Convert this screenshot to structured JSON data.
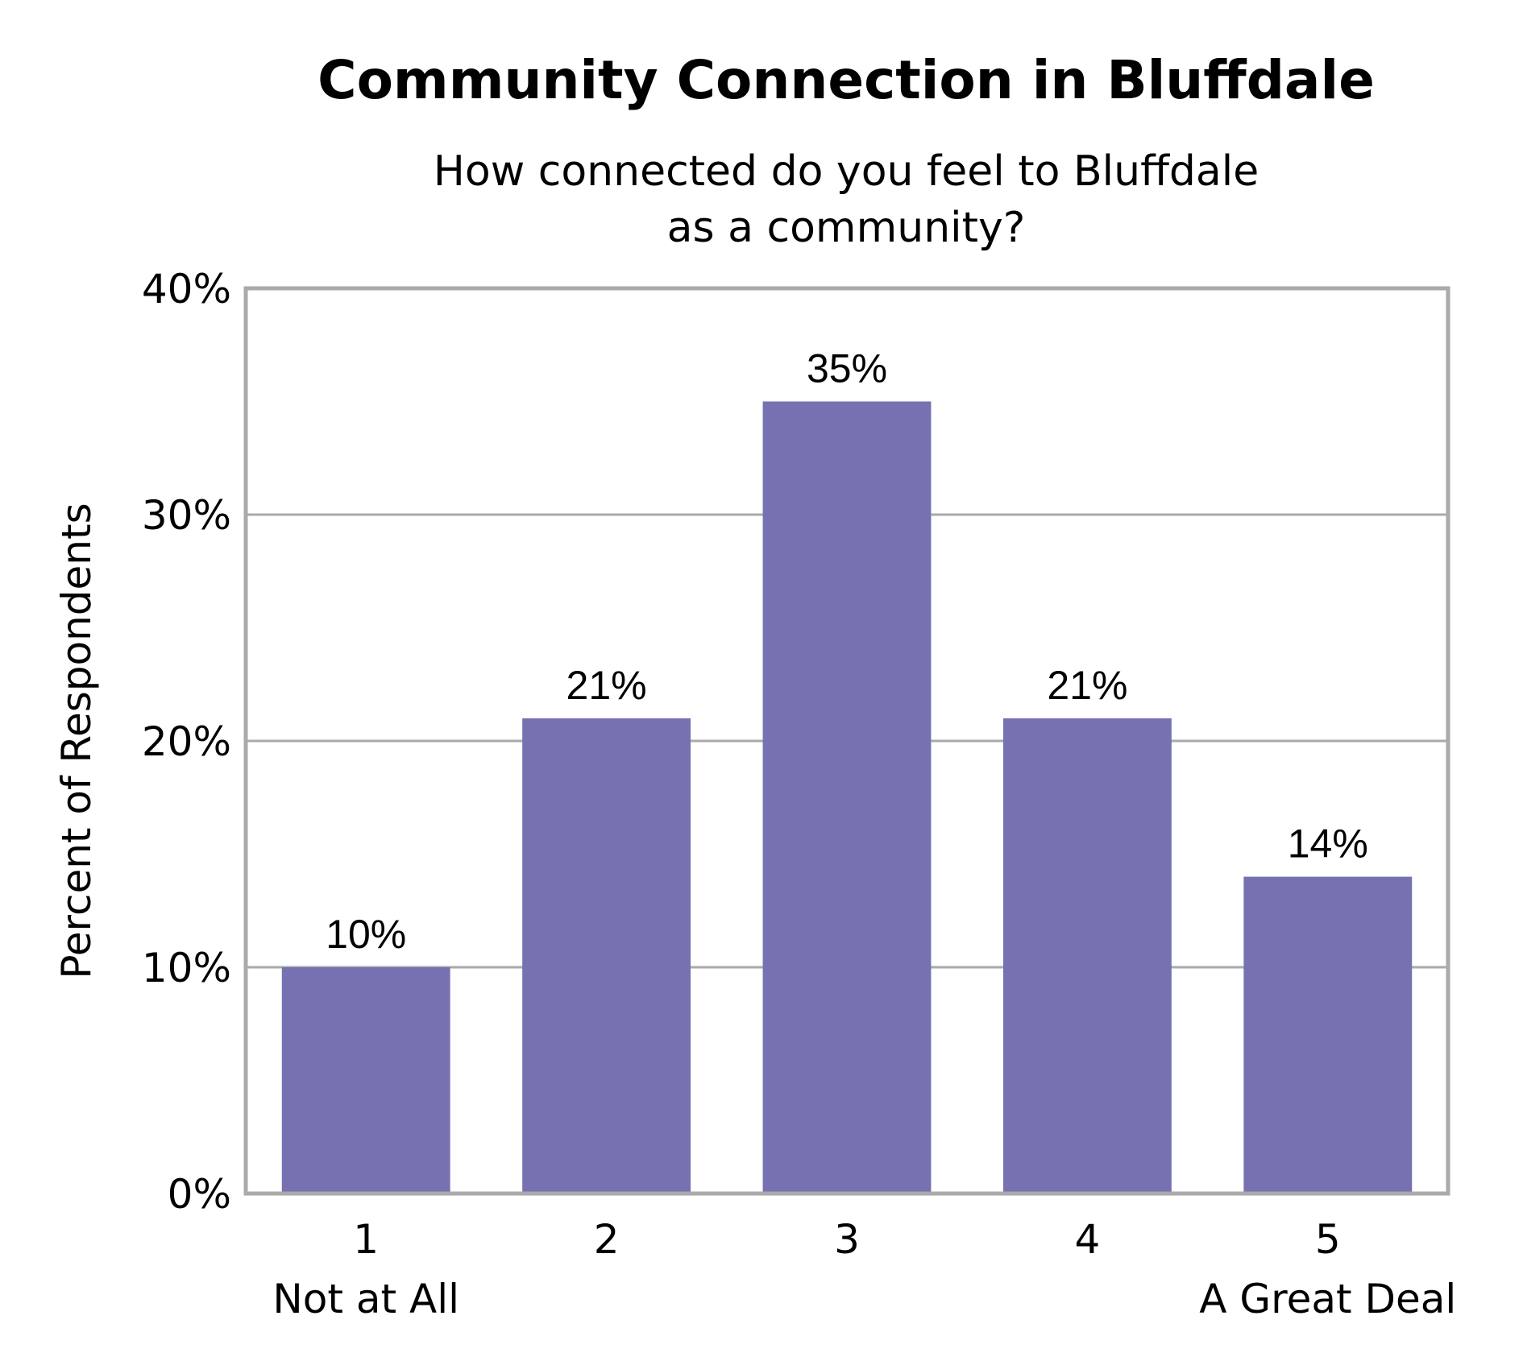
{
  "chart_data": {
    "type": "bar",
    "title": "Community Connection in Bluffdale",
    "subtitle_lines": [
      "How connected do you feel to Bluffdale",
      "as a community?"
    ],
    "ylabel": "Percent of Respondents",
    "xlabel": "",
    "categories": [
      "1",
      "2",
      "3",
      "4",
      "5"
    ],
    "category_sublabels": [
      "Not at All",
      "",
      "",
      "",
      "A Great Deal"
    ],
    "values": [
      10,
      21,
      35,
      21,
      14
    ],
    "value_labels": [
      "10%",
      "21%",
      "35%",
      "21%",
      "14%"
    ],
    "ylim": [
      0,
      40
    ],
    "yticks": [
      0,
      10,
      20,
      30,
      40
    ],
    "ytick_labels": [
      "0%",
      "10%",
      "20%",
      "30%",
      "40%"
    ],
    "grid": true,
    "legend": "none",
    "colors": {
      "bar": "#7672B1",
      "grid": "#AAAAAA",
      "frame": "#AAAAAA"
    }
  }
}
